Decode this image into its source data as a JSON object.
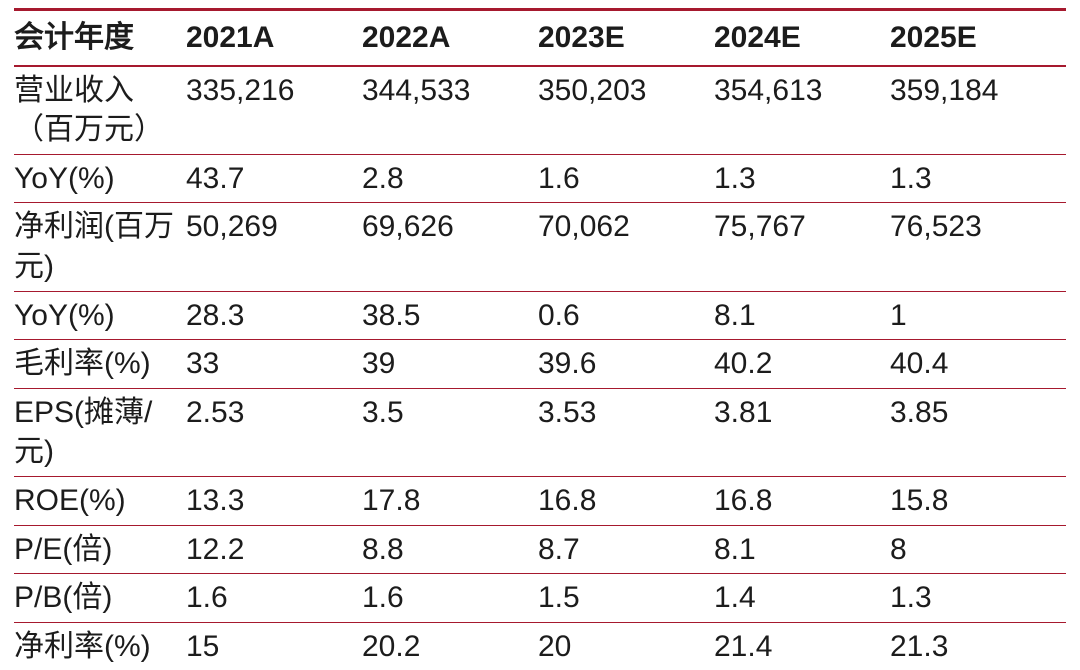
{
  "colors": {
    "accent_line": "#A6192E",
    "text": "#1C1C1C",
    "background": "#FFFFFF"
  },
  "table": {
    "header": [
      "会计年度",
      "2021A",
      "2022A",
      "2023E",
      "2024E",
      "2025E"
    ],
    "rows": [
      {
        "label": "营业收入（百万元）",
        "values": [
          "335,216",
          "344,533",
          "350,203",
          "354,613",
          "359,184"
        ]
      },
      {
        "label": "YoY(%)",
        "values": [
          "43.7",
          "2.8",
          "1.6",
          "1.3",
          "1.3"
        ]
      },
      {
        "label": "净利润(百万元)",
        "values": [
          "50,269",
          "69,626",
          "70,062",
          "75,767",
          "76,523"
        ]
      },
      {
        "label": "YoY(%)",
        "values": [
          "28.3",
          "38.5",
          "0.6",
          "8.1",
          "1"
        ]
      },
      {
        "label": "毛利率(%)",
        "values": [
          "33",
          "39",
          "39.6",
          "40.2",
          "40.4"
        ]
      },
      {
        "label": "EPS(摊薄/元)",
        "values": [
          "2.53",
          "3.5",
          "3.53",
          "3.81",
          "3.85"
        ]
      },
      {
        "label": "ROE(%)",
        "values": [
          "13.3",
          "17.8",
          "16.8",
          "16.8",
          "15.8"
        ]
      },
      {
        "label": "P/E(倍)",
        "values": [
          "12.2",
          "8.8",
          "8.7",
          "8.1",
          "8"
        ]
      },
      {
        "label": "P/B(倍)",
        "values": [
          "1.6",
          "1.6",
          "1.5",
          "1.4",
          "1.3"
        ]
      },
      {
        "label": "净利率(%)",
        "values": [
          "15",
          "20.2",
          "20",
          "21.4",
          "21.3"
        ]
      }
    ]
  }
}
